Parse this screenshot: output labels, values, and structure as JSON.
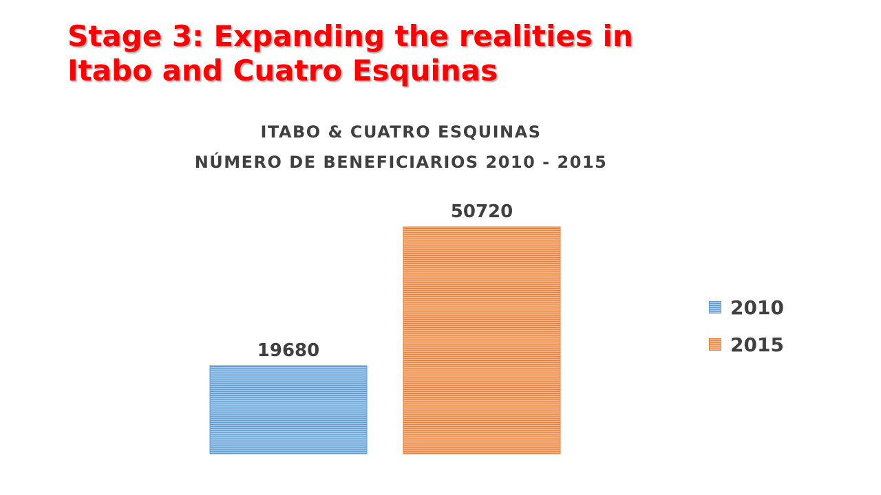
{
  "slide": {
    "title_line1": "Stage 3: Expanding the realities in",
    "title_line2": "Itabo and Cuatro Esquinas"
  },
  "chart_data": {
    "type": "bar",
    "title_line1": "ITABO & CUATRO ESQUINAS",
    "title_line2": "NÚMERO DE BENEFICIARIOS 2010 - 2015",
    "series": [
      {
        "name": "2010",
        "value": 19680,
        "color": "#5b9bd5"
      },
      {
        "name": "2015",
        "value": 50720,
        "color": "#ed7d31"
      }
    ],
    "data_labels": true,
    "legend": "right",
    "grid": false,
    "ylim": [
      0,
      50720
    ]
  }
}
